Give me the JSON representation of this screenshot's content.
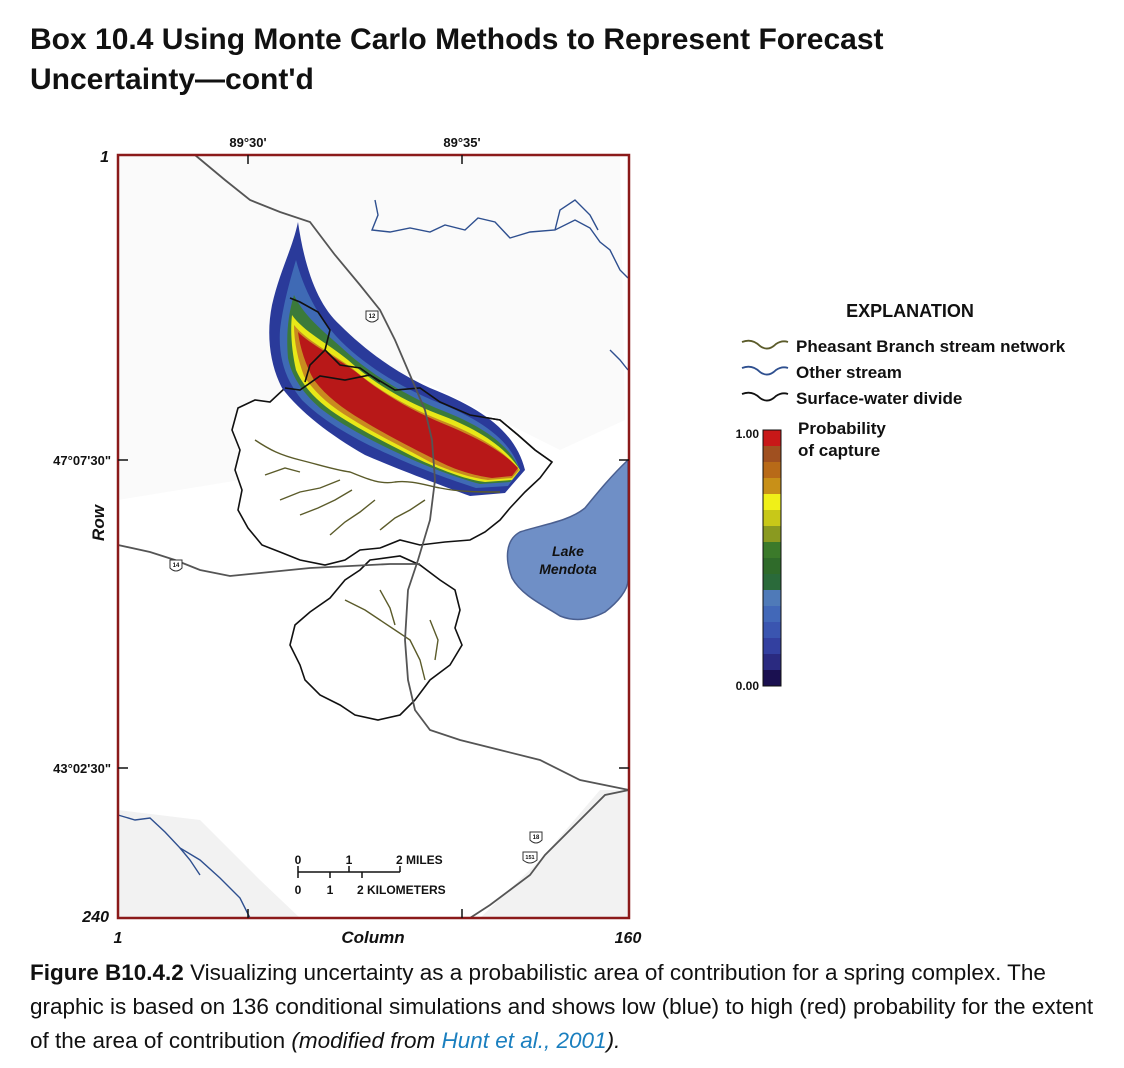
{
  "box_title": {
    "line1": "Box 10.4  Using Monte Carlo Methods to Represent Forecast",
    "line2": "Uncertainty—cont'd"
  },
  "map": {
    "lon_labels": [
      "89°30'",
      "89°35'"
    ],
    "lat_labels": [
      "47°07'30\"",
      "43°02'30\""
    ],
    "row_label": "Row",
    "row_top": "1",
    "row_bottom": "240",
    "column_label": "Column",
    "column_left": "1",
    "column_right": "160",
    "lake_label_1": "Lake",
    "lake_label_2": "Mendota",
    "highway_shields": [
      "12",
      "14",
      "18",
      "151"
    ],
    "colors": {
      "frame": "#8b1a1a",
      "lake": "#6f8fc6",
      "stream_pheasant": "#5b5b2a",
      "stream_other": "#2e4f8f",
      "divide": "#111111",
      "road": "#555555"
    },
    "scale_bar": {
      "miles_ticks": [
        "0",
        "1",
        "2 MILES"
      ],
      "km_ticks": [
        "0",
        "1",
        "2 KILOMETERS"
      ]
    }
  },
  "legend": {
    "title": "EXPLANATION",
    "items": [
      {
        "label": "Pheasant Branch stream network",
        "color": "#5b5b2a"
      },
      {
        "label": "Other stream",
        "color": "#2e4f8f"
      },
      {
        "label": "Surface-water divide",
        "color": "#111111"
      }
    ],
    "colorbar_title_1": "Probability",
    "colorbar_title_2": "of capture",
    "colorbar_max": "1.00",
    "colorbar_min": "0.00",
    "colorbar_colors": [
      "#1a1050",
      "#2a2a80",
      "#3340a0",
      "#3a55b0",
      "#4268b8",
      "#4f7ab8",
      "#2a6a3a",
      "#2f6b2a",
      "#3b7a2a",
      "#8a9a20",
      "#c8c818",
      "#f0f018",
      "#c89018",
      "#b86a18",
      "#a05020",
      "#c81818"
    ]
  },
  "caption": {
    "figure_label": "Figure B10.4.2",
    "text": " Visualizing uncertainty as a probabilistic area of contribution for a spring complex. The graphic is based on 136 conditional simulations and shows low (blue) to high (red) probability for the extent of the area of contribution ",
    "modified_prefix": "(modified from ",
    "citation": "Hunt et al., 2001",
    "modified_suffix": ")."
  }
}
